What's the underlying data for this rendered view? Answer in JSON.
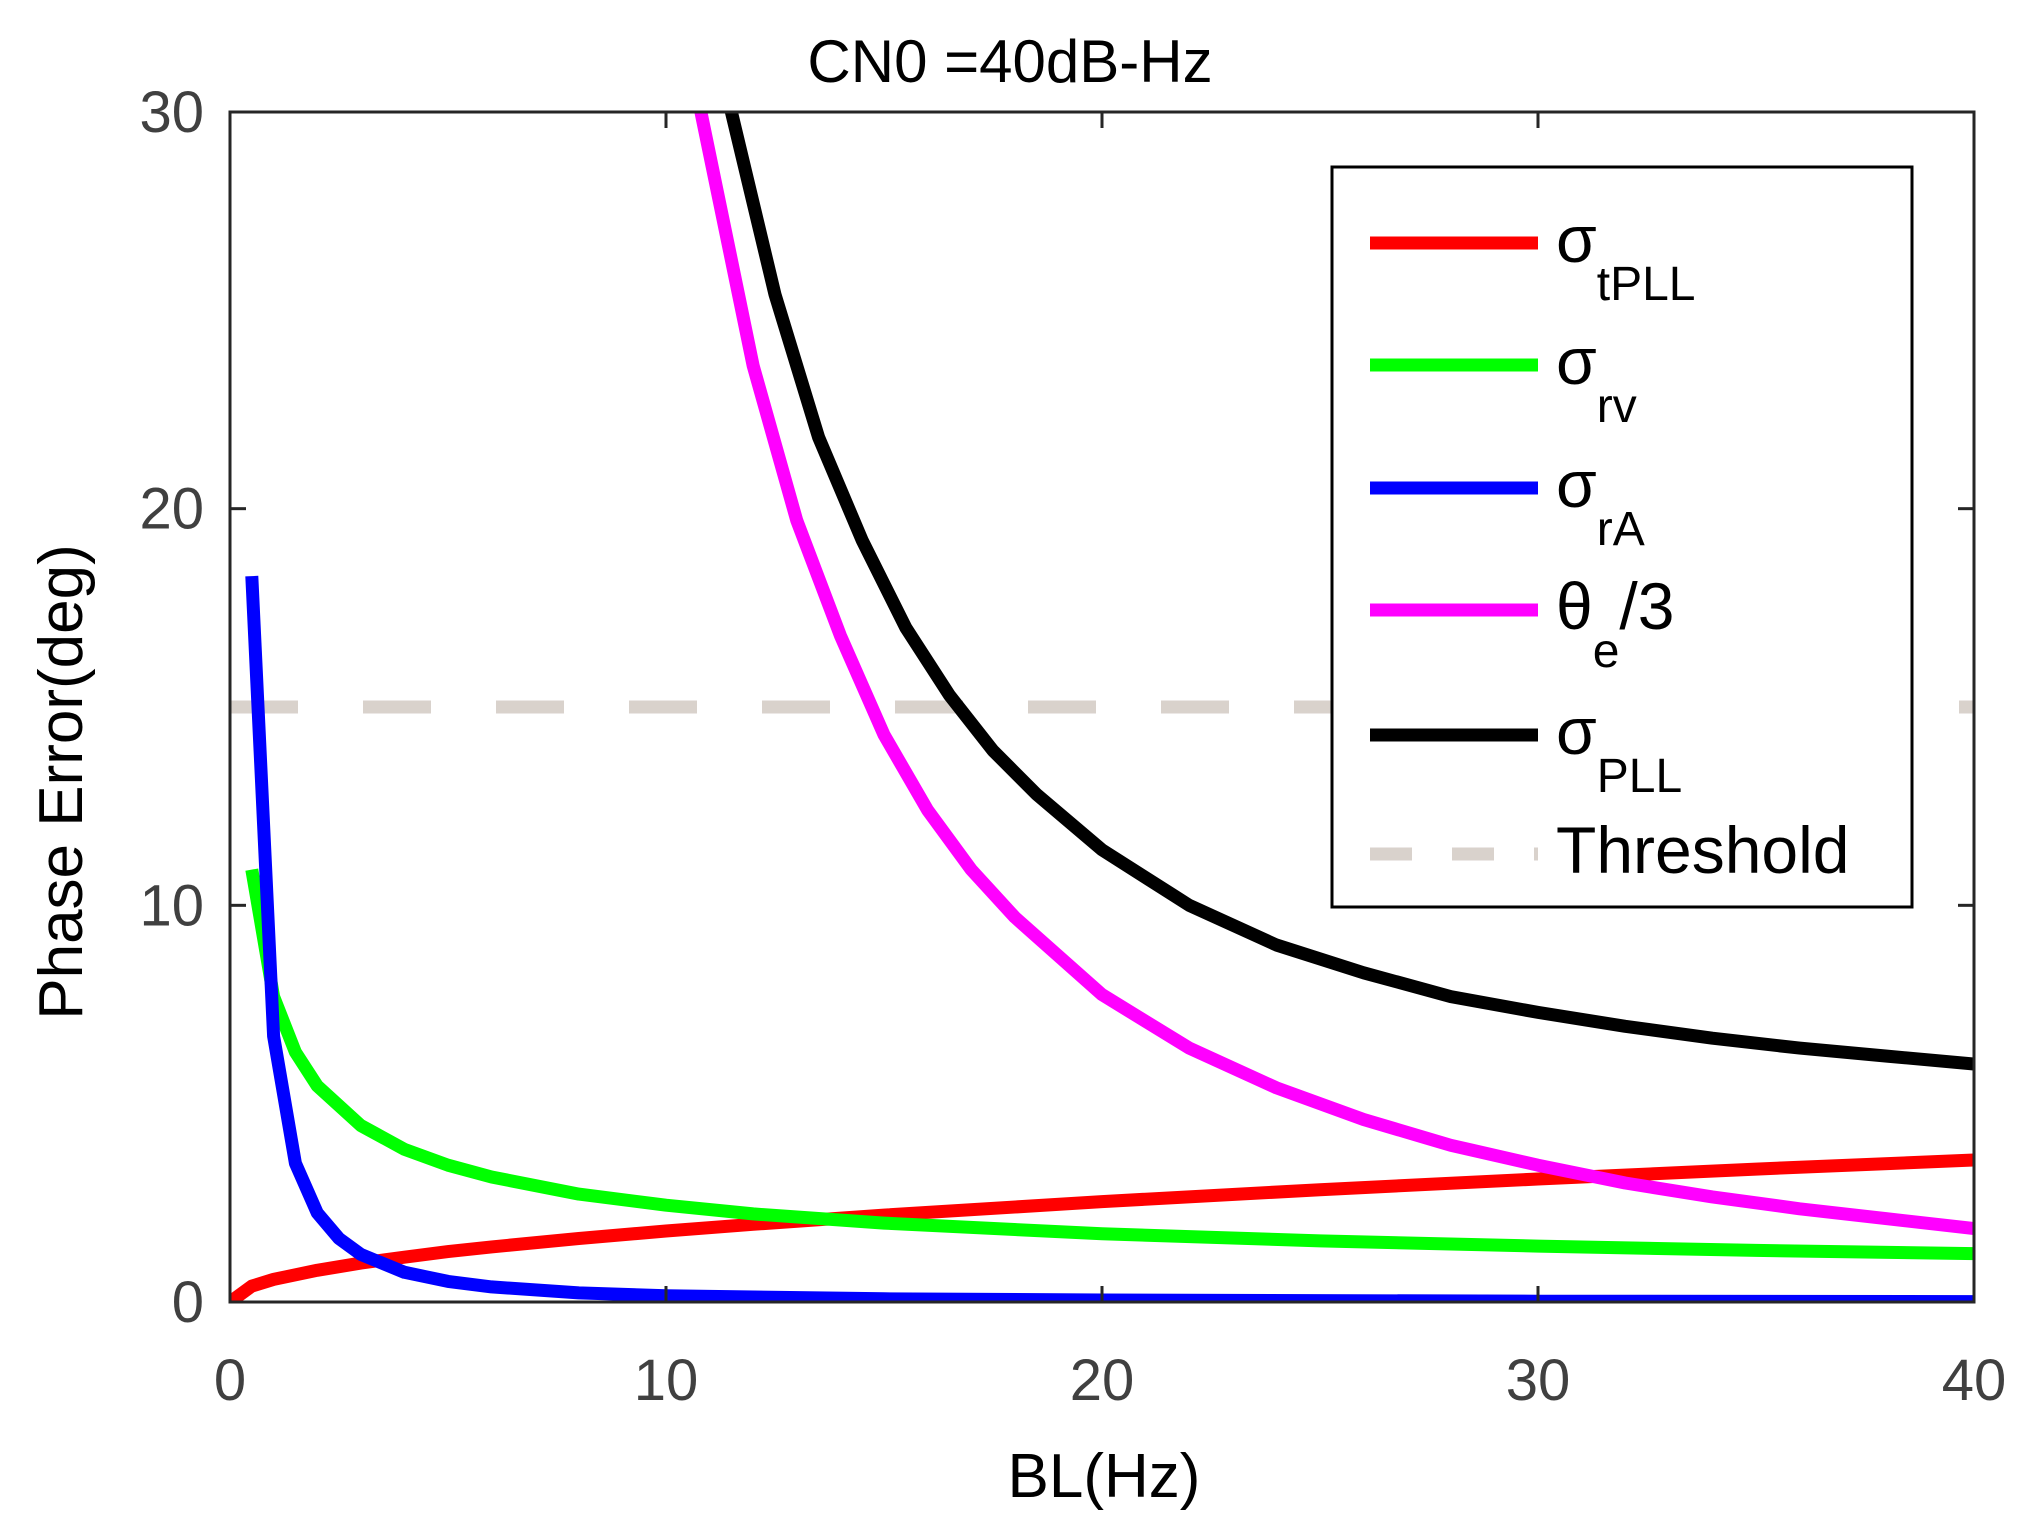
{
  "chart_data": {
    "type": "line",
    "title": "CN0 =40dB-Hz",
    "xlabel": "BL(Hz)",
    "ylabel": "Phase Error(deg)",
    "xlim": [
      0,
      40
    ],
    "ylim": [
      0,
      30
    ],
    "xticks": [
      0,
      10,
      20,
      30,
      40
    ],
    "yticks": [
      0,
      10,
      20,
      30
    ],
    "xtick_labels": [
      "0",
      "10",
      "20",
      "30",
      "40"
    ],
    "ytick_labels": [
      "0",
      "10",
      "20",
      "30"
    ],
    "grid": false,
    "legend_position": "top-right",
    "series": [
      {
        "name": "σtPLL",
        "symbol": "σ",
        "subscript": "tPLL",
        "suffix": "",
        "color": "#ff0000",
        "dashed": false,
        "x": [
          0,
          0.5,
          1,
          2,
          3,
          4,
          5,
          6,
          8,
          10,
          12,
          15,
          20,
          25,
          30,
          35,
          40
        ],
        "y": [
          0,
          0.4,
          0.57,
          0.8,
          0.98,
          1.13,
          1.27,
          1.39,
          1.6,
          1.79,
          1.96,
          2.19,
          2.53,
          2.83,
          3.1,
          3.35,
          3.58
        ]
      },
      {
        "name": "σrv",
        "symbol": "σ",
        "subscript": "rv",
        "suffix": "",
        "color": "#00ff00",
        "dashed": false,
        "x": [
          0.5,
          1,
          1.5,
          2,
          3,
          4,
          5,
          6,
          8,
          10,
          12,
          15,
          20,
          25,
          30,
          35,
          40
        ],
        "y": [
          10.9,
          7.7,
          6.3,
          5.45,
          4.45,
          3.85,
          3.45,
          3.15,
          2.72,
          2.44,
          2.22,
          1.99,
          1.72,
          1.54,
          1.41,
          1.3,
          1.22
        ]
      },
      {
        "name": "σrA",
        "symbol": "σ",
        "subscript": "rA",
        "suffix": "",
        "color": "#0000ff",
        "dashed": false,
        "x": [
          0.5,
          1,
          1.5,
          2,
          2.5,
          3,
          4,
          5,
          6,
          8,
          10,
          15,
          20,
          30,
          40
        ],
        "y": [
          18.3,
          6.7,
          3.5,
          2.25,
          1.6,
          1.2,
          0.75,
          0.52,
          0.38,
          0.23,
          0.16,
          0.08,
          0.05,
          0.02,
          0.01
        ]
      },
      {
        "name": "θe/3",
        "symbol": "θ",
        "subscript": "e",
        "suffix": "/3",
        "color": "#ff00ff",
        "dashed": false,
        "x": [
          10.8,
          12,
          13,
          14,
          15,
          16,
          17,
          18,
          20,
          22,
          24,
          26,
          28,
          30,
          32,
          34,
          36,
          38,
          40
        ],
        "y": [
          30,
          23.6,
          19.7,
          16.8,
          14.3,
          12.4,
          10.9,
          9.7,
          7.75,
          6.4,
          5.4,
          4.6,
          3.95,
          3.45,
          3.0,
          2.65,
          2.35,
          2.1,
          1.85
        ]
      },
      {
        "name": "σPLL",
        "symbol": "σ",
        "subscript": "PLL",
        "suffix": "",
        "color": "#000000",
        "dashed": false,
        "x": [
          11.5,
          12.5,
          13.5,
          14.5,
          15.5,
          16.5,
          17.5,
          18.5,
          20,
          22,
          24,
          26,
          28,
          30,
          32,
          34,
          36,
          38,
          40
        ],
        "y": [
          30,
          25.4,
          21.8,
          19.2,
          17.0,
          15.3,
          13.9,
          12.8,
          11.4,
          10.0,
          9.0,
          8.3,
          7.7,
          7.3,
          6.95,
          6.65,
          6.4,
          6.2,
          6.0
        ]
      },
      {
        "name": "Threshold",
        "symbol": "Threshold",
        "subscript": "",
        "suffix": "",
        "color": "#d9d2cc",
        "dashed": true,
        "x": [
          0,
          40
        ],
        "y": [
          15,
          15
        ]
      }
    ]
  }
}
